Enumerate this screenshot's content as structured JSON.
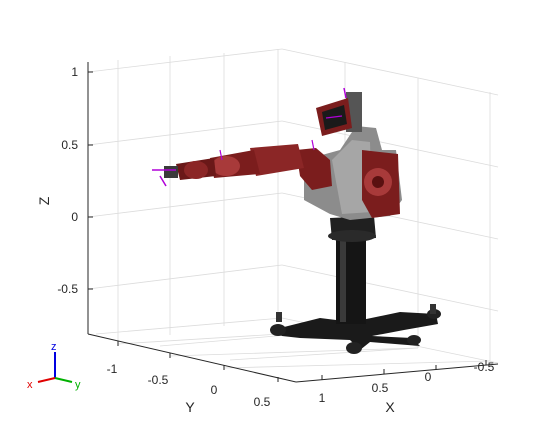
{
  "axes": {
    "z": {
      "label": "Z",
      "ticks": [
        "1",
        "0.5",
        "0",
        "-0.5"
      ]
    },
    "y": {
      "label": "Y",
      "ticks": [
        "-1",
        "-0.5",
        "0",
        "0.5"
      ]
    },
    "x": {
      "label": "X",
      "ticks": [
        "1",
        "0.5",
        "0",
        "-0.5"
      ]
    },
    "grid": true
  },
  "triad": {
    "x_label": "x",
    "y_label": "y",
    "z_label": "z"
  },
  "colors": {
    "robot_arm": "#7b1d1d",
    "robot_arm_highlight": "#a83a3a",
    "pedestal": "#1a1a1a",
    "body_gray": "#8c8c8c",
    "frame_marker": "#b000d8",
    "triad_x": "#e00000",
    "triad_y": "#00b000",
    "triad_z": "#0000e0"
  }
}
